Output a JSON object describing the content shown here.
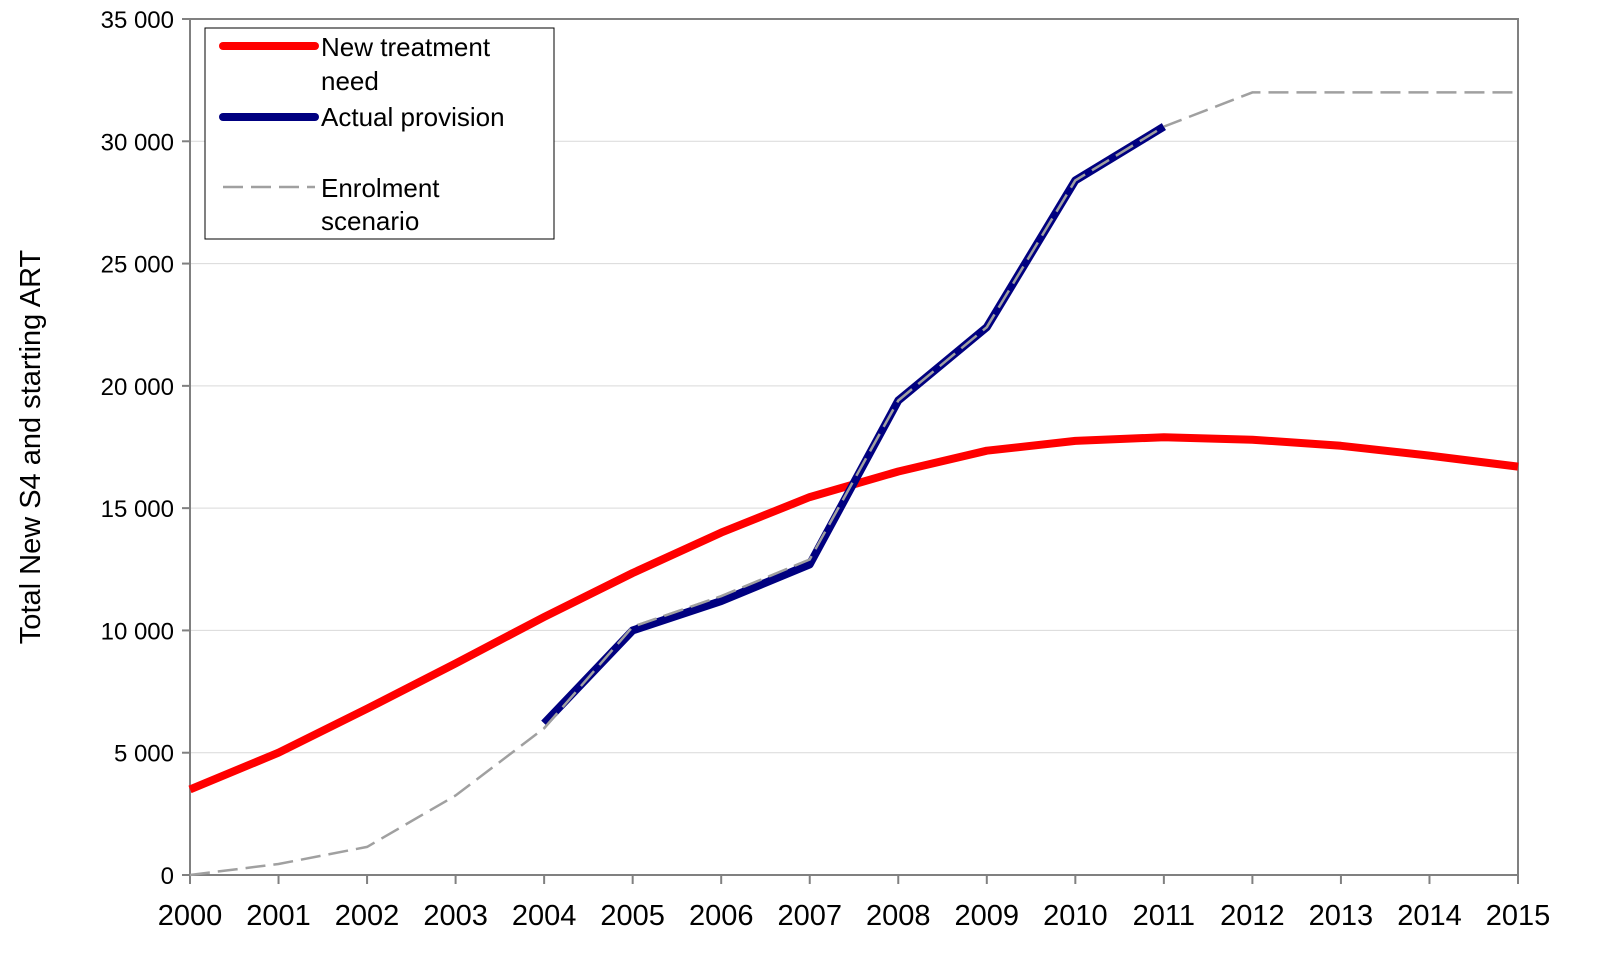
{
  "chart_data": {
    "type": "line",
    "title": "",
    "xlabel": "",
    "ylabel": "Total New S4 and starting ART",
    "x": [
      2000,
      2001,
      2002,
      2003,
      2004,
      2005,
      2006,
      2007,
      2008,
      2009,
      2010,
      2011,
      2012,
      2013,
      2014,
      2015
    ],
    "xlim": [
      2000,
      2015
    ],
    "ylim": [
      0,
      35000
    ],
    "y_ticks": [
      0,
      5000,
      10000,
      15000,
      20000,
      25000,
      30000,
      35000
    ],
    "y_tick_labels": [
      "0",
      "5 000",
      "10 000",
      "15 000",
      "20 000",
      "25 000",
      "30 000",
      "35 000"
    ],
    "grid": "horizontal",
    "legend_position": "top-left",
    "series": [
      {
        "name": "New treatment need",
        "color": "#ff0000",
        "style": "solid-thick",
        "points": [
          [
            2000,
            3500
          ],
          [
            2001,
            5000
          ],
          [
            2002,
            6800
          ],
          [
            2003,
            8650
          ],
          [
            2004,
            10550
          ],
          [
            2005,
            12350
          ],
          [
            2006,
            14000
          ],
          [
            2007,
            15450
          ],
          [
            2008,
            16500
          ],
          [
            2009,
            17350
          ],
          [
            2010,
            17750
          ],
          [
            2011,
            17900
          ],
          [
            2012,
            17800
          ],
          [
            2013,
            17550
          ],
          [
            2014,
            17150
          ],
          [
            2015,
            16700
          ]
        ]
      },
      {
        "name": "Actual provision",
        "color": "#000080",
        "style": "solid-thick-with-dash-overlay",
        "points": [
          [
            2004,
            6200
          ],
          [
            2005,
            10000
          ],
          [
            2006,
            11200
          ],
          [
            2007,
            12700
          ],
          [
            2008,
            19400
          ],
          [
            2009,
            22400
          ],
          [
            2010,
            28400
          ],
          [
            2011,
            30600
          ]
        ]
      },
      {
        "name": "Enrolment scenario",
        "color": "#a0a0a0",
        "style": "dashed",
        "points": [
          [
            2000,
            0
          ],
          [
            2001,
            450
          ],
          [
            2002,
            1150
          ],
          [
            2003,
            3250
          ],
          [
            2004,
            6000
          ],
          [
            2005,
            10150
          ],
          [
            2006,
            11400
          ],
          [
            2007,
            12900
          ],
          [
            2008,
            19400
          ],
          [
            2009,
            22400
          ],
          [
            2010,
            28400
          ],
          [
            2011,
            30600
          ],
          [
            2012,
            32000
          ],
          [
            2013,
            32000
          ],
          [
            2014,
            32000
          ],
          [
            2015,
            32000
          ]
        ]
      }
    ],
    "legend": [
      {
        "label_line1": "New treatment",
        "label_line2": "need"
      },
      {
        "label_line1": "Actual provision",
        "label_line2": ""
      },
      {
        "label_line1": "Enrolment",
        "label_line2": "scenario"
      }
    ]
  }
}
